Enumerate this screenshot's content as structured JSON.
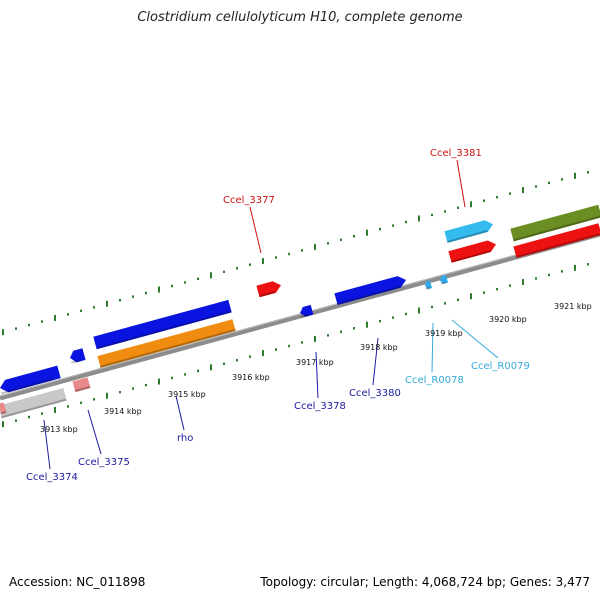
{
  "title": "Clostridium cellulolyticum H10, complete genome",
  "footer": {
    "accession": "Accession: NC_011898",
    "summary": "Topology: circular; Length: 4,068,724 bp; Genes: 3,477"
  },
  "colors": {
    "backbone": "#8c8c8c",
    "ticks": "#2e7d2e",
    "cds_blue": "#0a14e0",
    "cds_red": "#ee1111",
    "cds_orange": "#f08c10",
    "cds_gray": "#c8c8c8",
    "cds_pink": "#e88888",
    "cds_cyan": "#33bbee",
    "cds_olive": "#6b8e23",
    "rna_cyan": "#33aaee",
    "label_red": "#cc1111",
    "label_navy": "#1a1aa0",
    "label_cyan": "#33aadd"
  },
  "scale_labels": [
    {
      "text": "3913 kbp"
    },
    {
      "text": "3914 kbp"
    },
    {
      "text": "3915 kbp"
    },
    {
      "text": "3916 kbp"
    },
    {
      "text": "3917 kbp"
    },
    {
      "text": "3918 kbp"
    },
    {
      "text": "3919 kbp"
    },
    {
      "text": "3920 kbp"
    },
    {
      "text": "3921 kbp"
    }
  ],
  "gene_labels": [
    {
      "name": "ccel-3381",
      "text": "Ccel_3381",
      "color": "label_red"
    },
    {
      "name": "ccel-3377",
      "text": "Ccel_3377",
      "color": "label_red"
    },
    {
      "name": "ccel-3378",
      "text": "Ccel_3378",
      "color": "label_navy"
    },
    {
      "name": "ccel-3380",
      "text": "Ccel_3380",
      "color": "label_navy"
    },
    {
      "name": "ccel-r0078",
      "text": "Ccel_R0078",
      "color": "label_cyan"
    },
    {
      "name": "ccel-r0079",
      "text": "Ccel_R0079",
      "color": "label_cyan"
    },
    {
      "name": "ccel-3374",
      "text": "Ccel_3374",
      "color": "label_navy"
    },
    {
      "name": "ccel-3375",
      "text": "Ccel_3375",
      "color": "label_navy"
    },
    {
      "name": "rho",
      "text": "rho",
      "color": "label_navy"
    }
  ]
}
